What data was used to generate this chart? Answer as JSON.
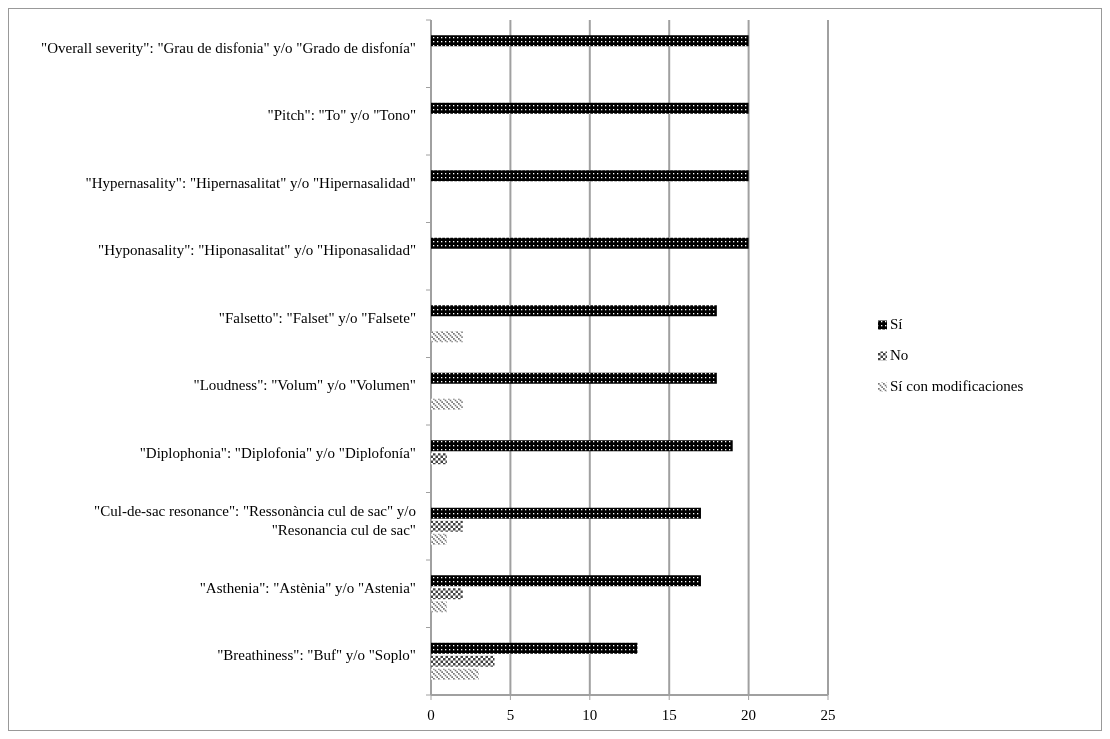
{
  "chart_data": {
    "type": "bar",
    "orientation": "horizontal",
    "categories": [
      "\"Overall severity\": \"Grau de disfonia\" y/o \"Grado de disfonía\"",
      "\"Pitch\": \"To\" y/o \"Tono\"",
      "\"Hypernasality\": \"Hipernasalitat\" y/o \"Hipernasalidad\"",
      "\"Hyponasality\": \"Hiponasalitat\" y/o \"Hiponasalidad\"",
      "\"Falsetto\": \"Falset\" y/o \"Falsete\"",
      "\"Loudness\": \"Volum\" y/o \"Volumen\"",
      "\"Diplophonia\": \"Diplofonia\" y/o \"Diplofonía\"",
      "\"Cul-de-sac resonance\": \"Ressonància cul de sac\" y/o \"Resonancia cul de sac\"",
      "\"Asthenia\": \"Astènia\" y/o \"Astenia\"",
      "\"Breathiness\": \"Buf\" y/o \"Soplo\""
    ],
    "series": [
      {
        "name": "Sí",
        "color": "#000000",
        "values": [
          20,
          20,
          20,
          20,
          18,
          18,
          19,
          17,
          17,
          13
        ]
      },
      {
        "name": "No",
        "color": "#444444",
        "values": [
          0,
          0,
          0,
          0,
          0,
          0,
          1,
          2,
          2,
          4
        ]
      },
      {
        "name": "Sí con modificaciones",
        "color": "#777777",
        "values": [
          0,
          0,
          0,
          0,
          2,
          2,
          0,
          1,
          1,
          3
        ]
      }
    ],
    "xlim": [
      0,
      25
    ],
    "xticks": [
      0,
      5,
      10,
      15,
      20,
      25
    ],
    "grid": "x",
    "legend": "right"
  }
}
